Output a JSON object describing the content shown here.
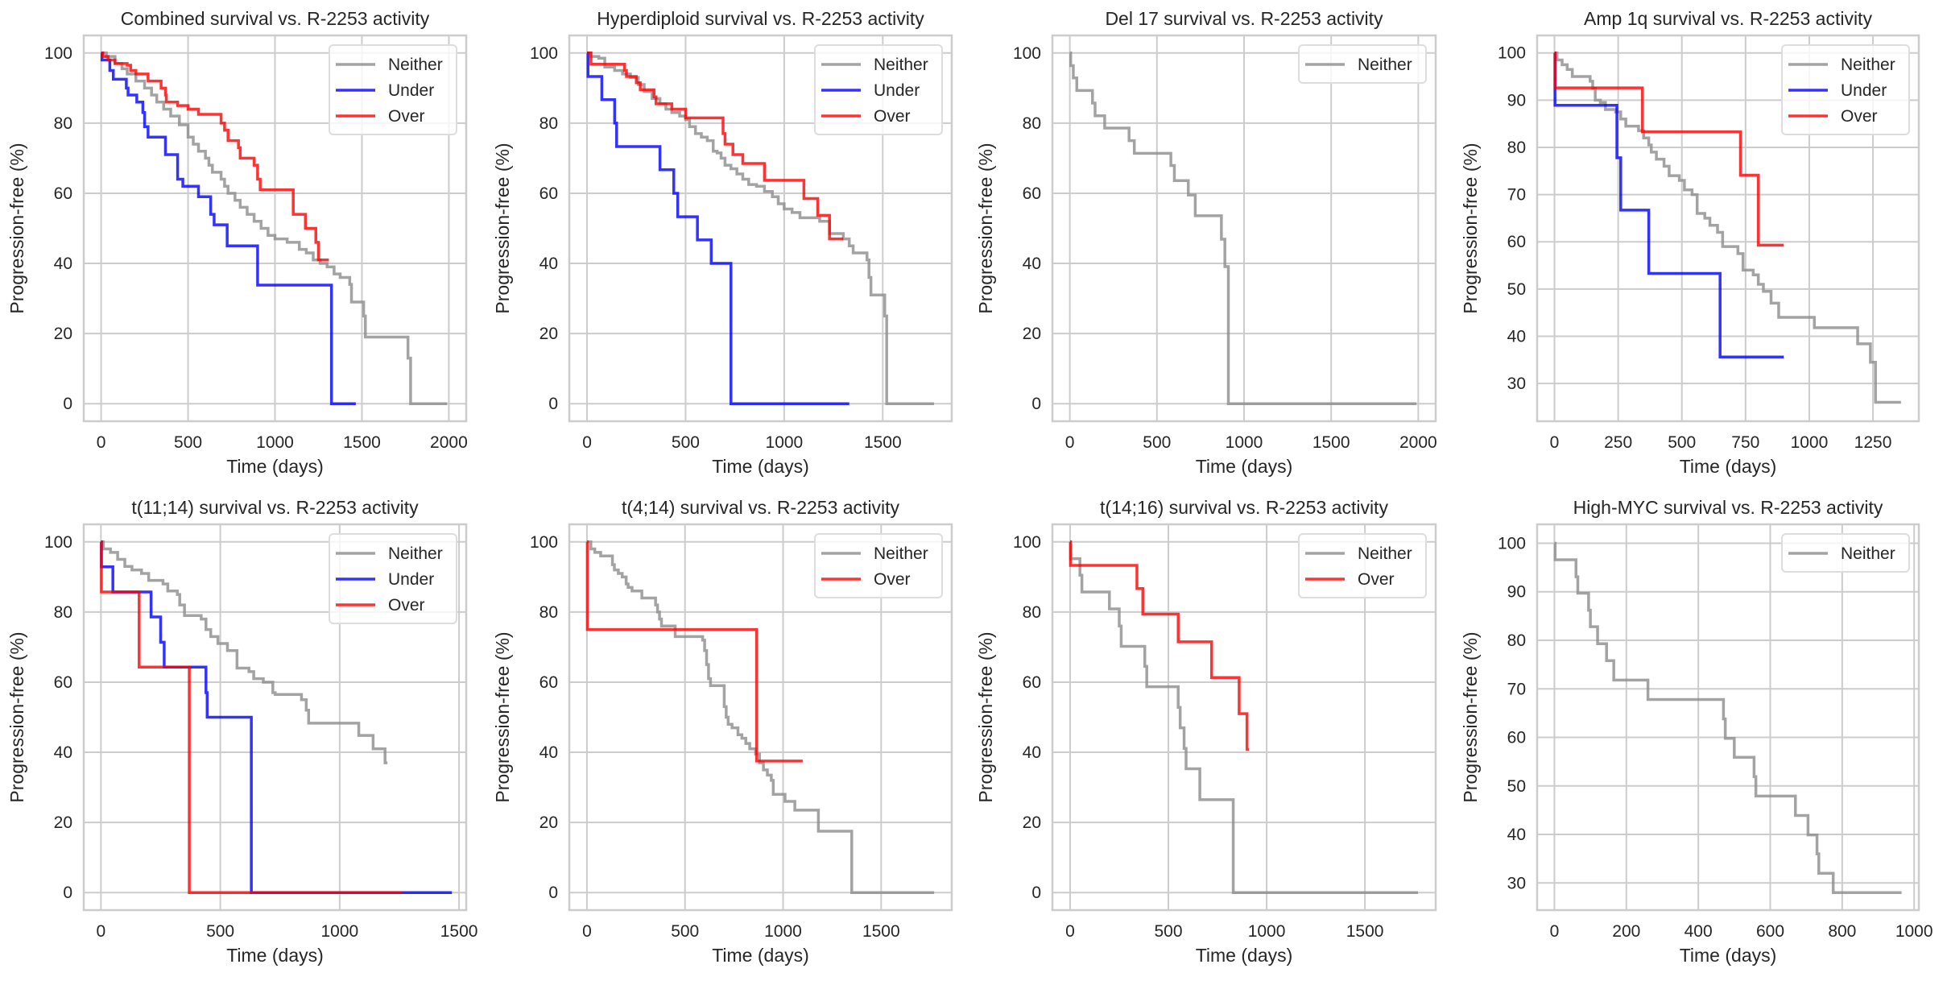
{
  "figure_title": "",
  "colors": {
    "Neither": "#8c8c8c",
    "Under": "#0000ff",
    "Over": "#ff0000",
    "grid": "#cccccc"
  },
  "chart_data": [
    {
      "type": "line",
      "step": true,
      "title": "Combined survival vs. R-2253 activity",
      "xlabel": "Time (days)",
      "ylabel": "Progression-free (%)",
      "xlim": [
        -100,
        2100
      ],
      "ylim": [
        -5,
        105
      ],
      "xticks": [
        0,
        500,
        1000,
        1500,
        2000
      ],
      "yticks": [
        0,
        20,
        40,
        60,
        80,
        100
      ],
      "grid": true,
      "legend": "top-right",
      "series": [
        {
          "name": "Neither",
          "x": [
            0,
            30,
            80,
            120,
            150,
            200,
            250,
            290,
            320,
            360,
            400,
            450,
            500,
            530,
            560,
            600,
            620,
            640,
            690,
            710,
            730,
            770,
            800,
            840,
            880,
            920,
            960,
            1000,
            1070,
            1140,
            1180,
            1220,
            1260,
            1300,
            1340,
            1375,
            1430,
            1440,
            1510,
            1520,
            1765,
            1780,
            1990
          ],
          "y": [
            100,
            99,
            97,
            95.5,
            94,
            92,
            90,
            88,
            86,
            84,
            82,
            79.5,
            76,
            74,
            72,
            70,
            68,
            66,
            64,
            62,
            60,
            58,
            56,
            54,
            52,
            50,
            48,
            47,
            46,
            44,
            43,
            41,
            40,
            39,
            37,
            36,
            34,
            29,
            25,
            19,
            13,
            0,
            0
          ]
        },
        {
          "name": "Under",
          "x": [
            0,
            5,
            50,
            70,
            145,
            155,
            205,
            240,
            250,
            270,
            370,
            440,
            470,
            560,
            630,
            650,
            725,
            900,
            1325,
            1465
          ],
          "y": [
            100,
            98,
            95,
            92.5,
            90,
            88,
            86,
            83,
            79,
            76,
            71,
            64,
            62,
            59,
            54,
            51,
            45,
            33.8,
            0,
            0
          ]
        },
        {
          "name": "Over",
          "x": [
            0,
            10,
            40,
            80,
            150,
            170,
            200,
            270,
            345,
            370,
            375,
            440,
            500,
            560,
            690,
            710,
            730,
            790,
            800,
            880,
            900,
            915,
            1105,
            1175,
            1235,
            1250,
            1310
          ],
          "y": [
            100,
            99,
            98,
            97,
            96.5,
            95,
            94,
            92,
            90,
            88,
            86,
            85,
            84,
            82.5,
            80,
            78,
            75,
            73,
            70,
            68,
            64,
            61,
            54,
            50,
            46,
            41,
            41
          ]
        }
      ]
    },
    {
      "type": "line",
      "step": true,
      "title": "Hyperdiploid survival vs. R-2253 activity",
      "xlabel": "Time (days)",
      "ylabel": "Progression-free (%)",
      "xlim": [
        -90,
        1850
      ],
      "ylim": [
        -5,
        105
      ],
      "xticks": [
        0,
        500,
        1000,
        1500
      ],
      "yticks": [
        0,
        20,
        40,
        60,
        80,
        100
      ],
      "grid": true,
      "legend": "top-right",
      "series": [
        {
          "name": "Neither",
          "x": [
            0,
            20,
            60,
            90,
            140,
            180,
            220,
            260,
            290,
            330,
            370,
            400,
            430,
            470,
            500,
            520,
            550,
            580,
            610,
            640,
            660,
            680,
            700,
            730,
            760,
            790,
            820,
            860,
            900,
            940,
            970,
            1000,
            1040,
            1080,
            1150,
            1180,
            1230,
            1300,
            1330,
            1350,
            1420,
            1430,
            1440,
            1510,
            1520,
            1760
          ],
          "y": [
            100,
            99,
            98.5,
            96,
            95,
            94,
            93,
            91,
            89,
            87,
            85.5,
            84,
            83,
            82,
            81,
            79,
            77,
            76,
            75,
            72,
            71.5,
            70,
            68,
            67,
            65.5,
            64,
            62.5,
            62,
            60.5,
            59,
            57,
            55.5,
            54.5,
            53,
            53,
            52,
            48.5,
            47,
            45,
            43,
            41,
            36,
            31,
            25,
            0,
            0
          ]
        },
        {
          "name": "Under",
          "x": [
            0,
            5,
            75,
            140,
            150,
            370,
            440,
            460,
            560,
            630,
            730,
            1330
          ],
          "y": [
            100,
            93.3,
            86.7,
            80,
            73.3,
            66.7,
            60,
            53.3,
            46.7,
            40,
            0,
            0
          ]
        },
        {
          "name": "Over",
          "x": [
            0,
            20,
            190,
            200,
            250,
            270,
            340,
            350,
            430,
            500,
            690,
            700,
            740,
            790,
            900,
            1100,
            1170,
            1230,
            1300
          ],
          "y": [
            100,
            96.8,
            95,
            93.3,
            91.5,
            89.5,
            87.5,
            85.5,
            84,
            81.5,
            77,
            74,
            71,
            68.5,
            63.7,
            58.5,
            53.7,
            47,
            47
          ]
        }
      ]
    },
    {
      "type": "line",
      "step": true,
      "title": "Del 17 survival vs. R-2253 activity",
      "xlabel": "Time (days)",
      "ylabel": "Progression-free (%)",
      "xlim": [
        -100,
        2100
      ],
      "ylim": [
        -5,
        105
      ],
      "xticks": [
        0,
        500,
        1000,
        1500,
        2000
      ],
      "yticks": [
        0,
        20,
        40,
        60,
        80,
        100
      ],
      "grid": true,
      "legend": "top-right",
      "series": [
        {
          "name": "Neither",
          "x": [
            0,
            5,
            20,
            40,
            130,
            145,
            200,
            340,
            370,
            580,
            600,
            680,
            720,
            870,
            890,
            910,
            1990
          ],
          "y": [
            100,
            96.4,
            92.9,
            89.3,
            85.7,
            82.1,
            78.6,
            75,
            71.4,
            67.9,
            63.6,
            59.5,
            53.6,
            46.9,
            39.1,
            0,
            0
          ]
        }
      ]
    },
    {
      "type": "line",
      "step": true,
      "title": "Amp 1q survival vs. R-2253 activity",
      "xlabel": "Time (days)",
      "ylabel": "Progression-free (%)",
      "xlim": [
        -68,
        1430
      ],
      "ylim": [
        22,
        103.7
      ],
      "xticks": [
        0,
        250,
        500,
        750,
        1000,
        1250
      ],
      "yticks": [
        30,
        40,
        50,
        60,
        70,
        80,
        90,
        100
      ],
      "grid": true,
      "legend": "top-right",
      "series": [
        {
          "name": "Neither",
          "x": [
            0,
            10,
            30,
            50,
            70,
            140,
            150,
            160,
            180,
            200,
            240,
            260,
            280,
            330,
            350,
            370,
            380,
            400,
            430,
            450,
            490,
            510,
            540,
            560,
            590,
            610,
            640,
            660,
            720,
            740,
            780,
            800,
            820,
            850,
            880,
            960,
            1020,
            1190,
            1240,
            1260,
            1360
          ],
          "y": [
            100,
            98.5,
            97.5,
            96.5,
            95,
            94,
            92.5,
            90,
            89.5,
            88,
            87.5,
            86,
            84.5,
            83.5,
            82,
            80.5,
            79,
            77.5,
            76,
            74,
            73,
            71,
            70,
            66,
            65,
            63.5,
            62,
            59,
            57.5,
            54,
            53,
            51,
            49.5,
            47,
            44,
            44,
            41.8,
            38.4,
            34.5,
            26,
            26
          ]
        },
        {
          "name": "Under",
          "x": [
            0,
            2,
            245,
            260,
            370,
            650,
            900
          ],
          "y": [
            100,
            88.9,
            77.8,
            66.7,
            53.3,
            35.6,
            35.6
          ]
        },
        {
          "name": "Over",
          "x": [
            0,
            2,
            345,
            730,
            800,
            900
          ],
          "y": [
            100,
            92.6,
            83.3,
            74.1,
            59.3,
            59.3
          ]
        }
      ]
    },
    {
      "type": "line",
      "step": true,
      "title": "t(11;14) survival vs. R-2253 activity",
      "xlabel": "Time (days)",
      "ylabel": "Progression-free (%)",
      "xlim": [
        -72,
        1530
      ],
      "ylim": [
        -5,
        105
      ],
      "xticks": [
        0,
        500,
        1000,
        1500
      ],
      "yticks": [
        0,
        20,
        40,
        60,
        80,
        100
      ],
      "grid": true,
      "legend": "top-right",
      "series": [
        {
          "name": "Neither",
          "x": [
            0,
            10,
            40,
            70,
            100,
            130,
            170,
            200,
            260,
            280,
            320,
            330,
            350,
            420,
            440,
            460,
            490,
            530,
            570,
            620,
            640,
            660,
            680,
            700,
            720,
            730,
            800,
            840,
            860,
            870,
            1060,
            1080,
            1140,
            1190,
            1200
          ],
          "y": [
            100,
            98,
            97,
            95,
            93,
            92,
            91,
            89,
            88,
            86,
            85,
            82,
            79,
            78,
            75,
            73,
            71,
            69,
            64,
            63,
            61,
            61,
            60,
            60,
            57,
            56.5,
            56.5,
            55,
            52,
            48.3,
            48.3,
            44.8,
            41,
            37,
            37
          ]
        },
        {
          "name": "Under",
          "x": [
            0,
            2,
            50,
            210,
            250,
            265,
            440,
            445,
            630,
            1470
          ],
          "y": [
            100,
            92.9,
            85.7,
            78.6,
            71.4,
            64.3,
            57,
            50,
            0,
            0
          ]
        },
        {
          "name": "Over",
          "x": [
            0,
            2,
            160,
            370,
            1260
          ],
          "y": [
            100,
            85.7,
            64.3,
            0,
            0
          ]
        }
      ]
    },
    {
      "type": "line",
      "step": true,
      "title": "t(4;14) survival vs. R-2253 activity",
      "xlabel": "Time (days)",
      "ylabel": "Progression-free (%)",
      "xlim": [
        -90,
        1860
      ],
      "ylim": [
        -5,
        105
      ],
      "xticks": [
        0,
        500,
        1000,
        1500
      ],
      "yticks": [
        0,
        20,
        40,
        60,
        80,
        100
      ],
      "grid": true,
      "legend": "top-right",
      "series": [
        {
          "name": "Neither",
          "x": [
            0,
            20,
            40,
            70,
            130,
            140,
            160,
            180,
            200,
            210,
            230,
            280,
            350,
            360,
            370,
            380,
            390,
            450,
            590,
            600,
            610,
            620,
            630,
            700,
            710,
            720,
            740,
            770,
            790,
            810,
            830,
            860,
            880,
            900,
            920,
            940,
            950,
            1010,
            1060,
            1180,
            1350,
            1770
          ],
          "y": [
            100,
            98,
            97,
            96,
            93.5,
            92,
            91,
            90,
            88,
            87,
            86,
            84,
            82,
            80,
            78,
            76,
            76,
            73,
            72,
            69,
            65,
            61,
            59,
            53,
            50,
            48,
            47,
            45,
            44,
            42.5,
            41,
            39.5,
            37,
            35,
            33.5,
            32,
            28,
            26,
            23.5,
            17.5,
            0,
            0
          ]
        },
        {
          "name": "Over",
          "x": [
            0,
            2,
            865,
            1100
          ],
          "y": [
            100,
            75,
            37.5,
            37.5
          ]
        }
      ]
    },
    {
      "type": "line",
      "step": true,
      "title": "t(14;16) survival vs. R-2253 activity",
      "xlabel": "Time (days)",
      "ylabel": "Progression-free (%)",
      "xlim": [
        -90,
        1860
      ],
      "ylim": [
        -5,
        105
      ],
      "xticks": [
        0,
        500,
        1000,
        1500
      ],
      "yticks": [
        0,
        20,
        40,
        60,
        80,
        100
      ],
      "grid": true,
      "legend": "top-right",
      "series": [
        {
          "name": "Neither",
          "x": [
            0,
            2,
            50,
            60,
            200,
            250,
            260,
            380,
            390,
            550,
            560,
            580,
            590,
            660,
            830,
            1770
          ],
          "y": [
            100,
            95.2,
            90.5,
            85.7,
            80.9,
            76,
            70.2,
            64.5,
            58.7,
            52.8,
            47,
            41.1,
            35.3,
            26.5,
            0,
            0
          ]
        },
        {
          "name": "Over",
          "x": [
            0,
            2,
            340,
            370,
            550,
            720,
            860,
            900,
            910
          ],
          "y": [
            100,
            93.3,
            86.7,
            79.4,
            71.5,
            61.3,
            51,
            40.8,
            40.8
          ]
        }
      ]
    },
    {
      "type": "line",
      "step": true,
      "title": "High-MYC survival vs. R-2253 activity",
      "xlabel": "Time (days)",
      "ylabel": "Progression-free (%)",
      "xlim": [
        -48,
        1013
      ],
      "ylim": [
        24.4,
        103.9
      ],
      "xticks": [
        0,
        200,
        400,
        600,
        800,
        1000
      ],
      "yticks": [
        30,
        40,
        50,
        60,
        70,
        80,
        90,
        100
      ],
      "grid": true,
      "legend": "top-right",
      "series": [
        {
          "name": "Neither",
          "x": [
            0,
            2,
            60,
            65,
            95,
            100,
            120,
            145,
            165,
            260,
            470,
            475,
            500,
            555,
            560,
            670,
            705,
            730,
            735,
            775,
            965
          ],
          "y": [
            100,
            96.6,
            93.1,
            89.7,
            86.2,
            82.8,
            79.3,
            75.8,
            71.8,
            67.8,
            63.8,
            59.8,
            55.9,
            51.9,
            47.9,
            43.9,
            39.9,
            36,
            32,
            28,
            28
          ]
        }
      ]
    }
  ]
}
